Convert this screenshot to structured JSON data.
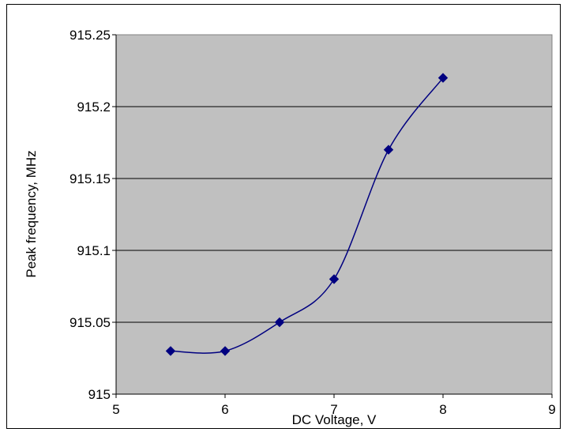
{
  "chart_data": {
    "type": "scatter",
    "title": "",
    "xlabel": "DC Voltage, V",
    "ylabel": "Peak frequency, MHz",
    "xlim": [
      5,
      9
    ],
    "ylim": [
      915,
      915.25
    ],
    "x_ticks": [
      "5",
      "6",
      "7",
      "8",
      "9"
    ],
    "y_ticks": [
      "915",
      "915.05",
      "915.1",
      "915.15",
      "915.2",
      "915.25"
    ],
    "grid": "horizontal",
    "plot_background": "#c0c0c0",
    "series": [
      {
        "color": "#000080",
        "marker": "diamond",
        "line": "smoothed",
        "x": [
          5.5,
          6.0,
          6.5,
          7.0,
          7.5,
          8.0
        ],
        "y": [
          915.03,
          915.03,
          915.05,
          915.08,
          915.17,
          915.22
        ]
      }
    ]
  }
}
